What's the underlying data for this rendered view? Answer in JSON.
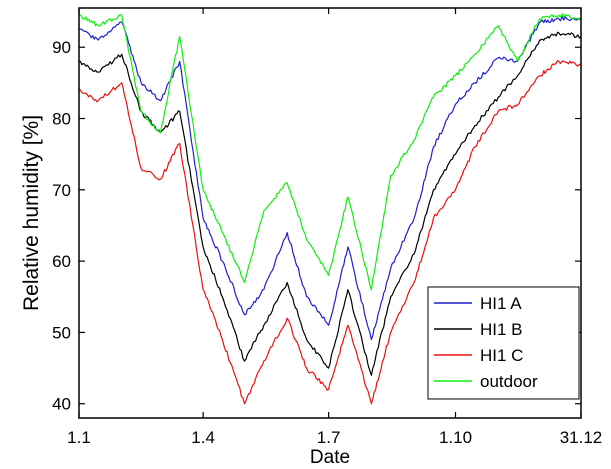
{
  "chart_data": {
    "type": "line",
    "title": "",
    "xlabel": "Date",
    "ylabel": "Relative humidity [%]",
    "x_categories": [
      "1.1",
      "1.4",
      "1.7",
      "1.10",
      "31.12"
    ],
    "xlim": [
      "1.1",
      "31.12"
    ],
    "ylim": [
      38,
      95.5
    ],
    "yticks": [
      40,
      50,
      60,
      70,
      80,
      90
    ],
    "grid": false,
    "legend": "bottom-right",
    "x_dates": [
      "1.1",
      "15.1",
      "1.2",
      "15.2",
      "1.3",
      "15.3",
      "1.4",
      "15.4",
      "1.5",
      "15.5",
      "1.6",
      "15.6",
      "1.7",
      "15.7",
      "1.8",
      "15.8",
      "1.9",
      "15.9",
      "1.10",
      "15.10",
      "1.11",
      "15.11",
      "1.12",
      "15.12",
      "31.12"
    ],
    "series": [
      {
        "name": "HI1 A",
        "color": "#1f1fcf",
        "values": [
          92.5,
          91,
          93.5,
          85,
          82.5,
          88,
          66,
          60,
          52.5,
          56,
          64,
          55,
          51,
          62,
          49,
          59,
          66,
          76,
          82,
          85,
          88.5,
          88,
          93.5,
          94,
          94
        ]
      },
      {
        "name": "HI1 B",
        "color": "#000000",
        "values": [
          88,
          86.5,
          89,
          81,
          78,
          81,
          62,
          55,
          46,
          51,
          57,
          49,
          45,
          56,
          44,
          55,
          61,
          70,
          75,
          79,
          83,
          86,
          91,
          92,
          91.5
        ]
      },
      {
        "name": "HI1 C",
        "color": "#e8110f",
        "values": [
          84,
          82.5,
          85,
          73,
          71.5,
          76.5,
          56,
          49,
          40,
          46,
          52,
          45,
          42,
          51,
          40,
          50,
          57,
          66,
          70,
          76,
          81,
          82,
          86,
          88,
          87.5
        ]
      },
      {
        "name": "outdoor",
        "color": "#11ee11",
        "values": [
          94.5,
          93,
          94.5,
          81,
          78,
          91.5,
          70,
          64,
          57,
          67,
          71,
          63,
          58,
          69,
          56,
          72,
          77,
          83,
          86,
          89,
          93,
          88,
          94,
          94.5,
          94
        ]
      }
    ]
  }
}
